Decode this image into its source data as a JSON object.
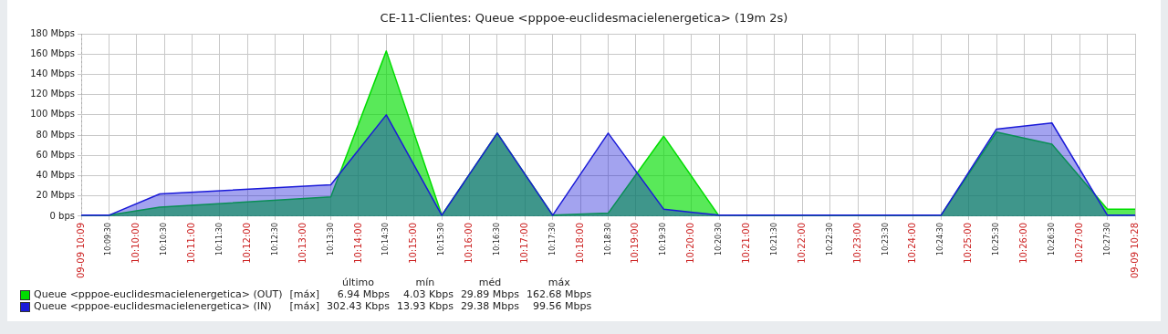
{
  "chart_data": {
    "type": "area",
    "title": "CE-11-Clientes: Queue <pppoe-euclidesmacielenergetica> (19m 2s)",
    "x": [
      10.15,
      10.158333,
      10.173611,
      10.225,
      10.241667,
      10.258333,
      10.275,
      10.291667,
      10.308333,
      10.325,
      10.341667,
      10.408333,
      10.425,
      10.441667,
      10.458333,
      10.466667
    ],
    "series": [
      {
        "name": "Queue <pppoe-euclidesmacielenergetica> (OUT)",
        "color": "#00dd00",
        "values": [
          1,
          1,
          9,
          19,
          163,
          1,
          82,
          1,
          3,
          79,
          0,
          1,
          83,
          71,
          7,
          7
        ]
      },
      {
        "name": "Queue <pppoe-euclidesmacielenergetica> (IN)",
        "color": "#1a1ad8",
        "values": [
          1,
          1,
          22,
          31,
          100,
          1,
          82,
          1,
          82,
          7,
          1,
          1,
          86,
          92,
          1,
          1
        ]
      }
    ],
    "xlim": [
      10.15,
      10.466667
    ],
    "xticks": [
      {
        "value": 10.15,
        "label": "09-09 10:09"
      },
      {
        "value": 10.158333,
        "label": "10:09:30"
      },
      {
        "value": 10.166667,
        "label": "10:10:00"
      },
      {
        "value": 10.175,
        "label": "10:10:30"
      },
      {
        "value": 10.183333,
        "label": "10:11:00"
      },
      {
        "value": 10.191667,
        "label": "10:11:30"
      },
      {
        "value": 10.2,
        "label": "10:12:00"
      },
      {
        "value": 10.208333,
        "label": "10:12:30"
      },
      {
        "value": 10.216667,
        "label": "10:13:00"
      },
      {
        "value": 10.225,
        "label": "10:13:30"
      },
      {
        "value": 10.233333,
        "label": "10:14:00"
      },
      {
        "value": 10.241667,
        "label": "10:14:30"
      },
      {
        "value": 10.25,
        "label": "10:15:00"
      },
      {
        "value": 10.258333,
        "label": "10:15:30"
      },
      {
        "value": 10.266667,
        "label": "10:16:00"
      },
      {
        "value": 10.275,
        "label": "10:16:30"
      },
      {
        "value": 10.283333,
        "label": "10:17:00"
      },
      {
        "value": 10.291667,
        "label": "10:17:30"
      },
      {
        "value": 10.3,
        "label": "10:18:00"
      },
      {
        "value": 10.308333,
        "label": "10:18:30"
      },
      {
        "value": 10.316667,
        "label": "10:19:00"
      },
      {
        "value": 10.325,
        "label": "10:19:30"
      },
      {
        "value": 10.333333,
        "label": "10:20:00"
      },
      {
        "value": 10.341667,
        "label": "10:20:30"
      },
      {
        "value": 10.35,
        "label": "10:21:00"
      },
      {
        "value": 10.358333,
        "label": "10:21:30"
      },
      {
        "value": 10.366667,
        "label": "10:22:00"
      },
      {
        "value": 10.375,
        "label": "10:22:30"
      },
      {
        "value": 10.383333,
        "label": "10:23:00"
      },
      {
        "value": 10.391667,
        "label": "10:23:30"
      },
      {
        "value": 10.4,
        "label": "10:24:00"
      },
      {
        "value": 10.408333,
        "label": "10:24:30"
      },
      {
        "value": 10.416667,
        "label": "10:25:00"
      },
      {
        "value": 10.425,
        "label": "10:25:30"
      },
      {
        "value": 10.433333,
        "label": "10:26:00"
      },
      {
        "value": 10.441667,
        "label": "10:26:30"
      },
      {
        "value": 10.45,
        "label": "10:27:00"
      },
      {
        "value": 10.458333,
        "label": "10:27:30"
      },
      {
        "value": 10.466667,
        "label": "09-09 10:28"
      }
    ],
    "ylim": [
      0,
      180
    ],
    "yticks": [
      {
        "value": 0,
        "label": "0 bps"
      },
      {
        "value": 20,
        "label": "20 Mbps"
      },
      {
        "value": 40,
        "label": "40 Mbps"
      },
      {
        "value": 60,
        "label": "60 Mbps"
      },
      {
        "value": 80,
        "label": "80 Mbps"
      },
      {
        "value": 100,
        "label": "100 Mbps"
      },
      {
        "value": 120,
        "label": "120 Mbps"
      },
      {
        "value": 140,
        "label": "140 Mbps"
      },
      {
        "value": 160,
        "label": "160 Mbps"
      },
      {
        "value": 180,
        "label": "180 Mbps"
      }
    ],
    "grid": true,
    "legend": "bottom left",
    "annotations": [
      "último",
      "mín",
      "méd",
      "máx",
      "[máx]",
      "6.94 Mbps",
      "4.03 Kbps",
      "29.89 Mbps",
      "162.68 Mbps",
      "[máx]",
      "302.43 Kbps",
      "13.93 Kbps",
      "29.38 Mbps",
      "99.56 Mbps"
    ]
  }
}
